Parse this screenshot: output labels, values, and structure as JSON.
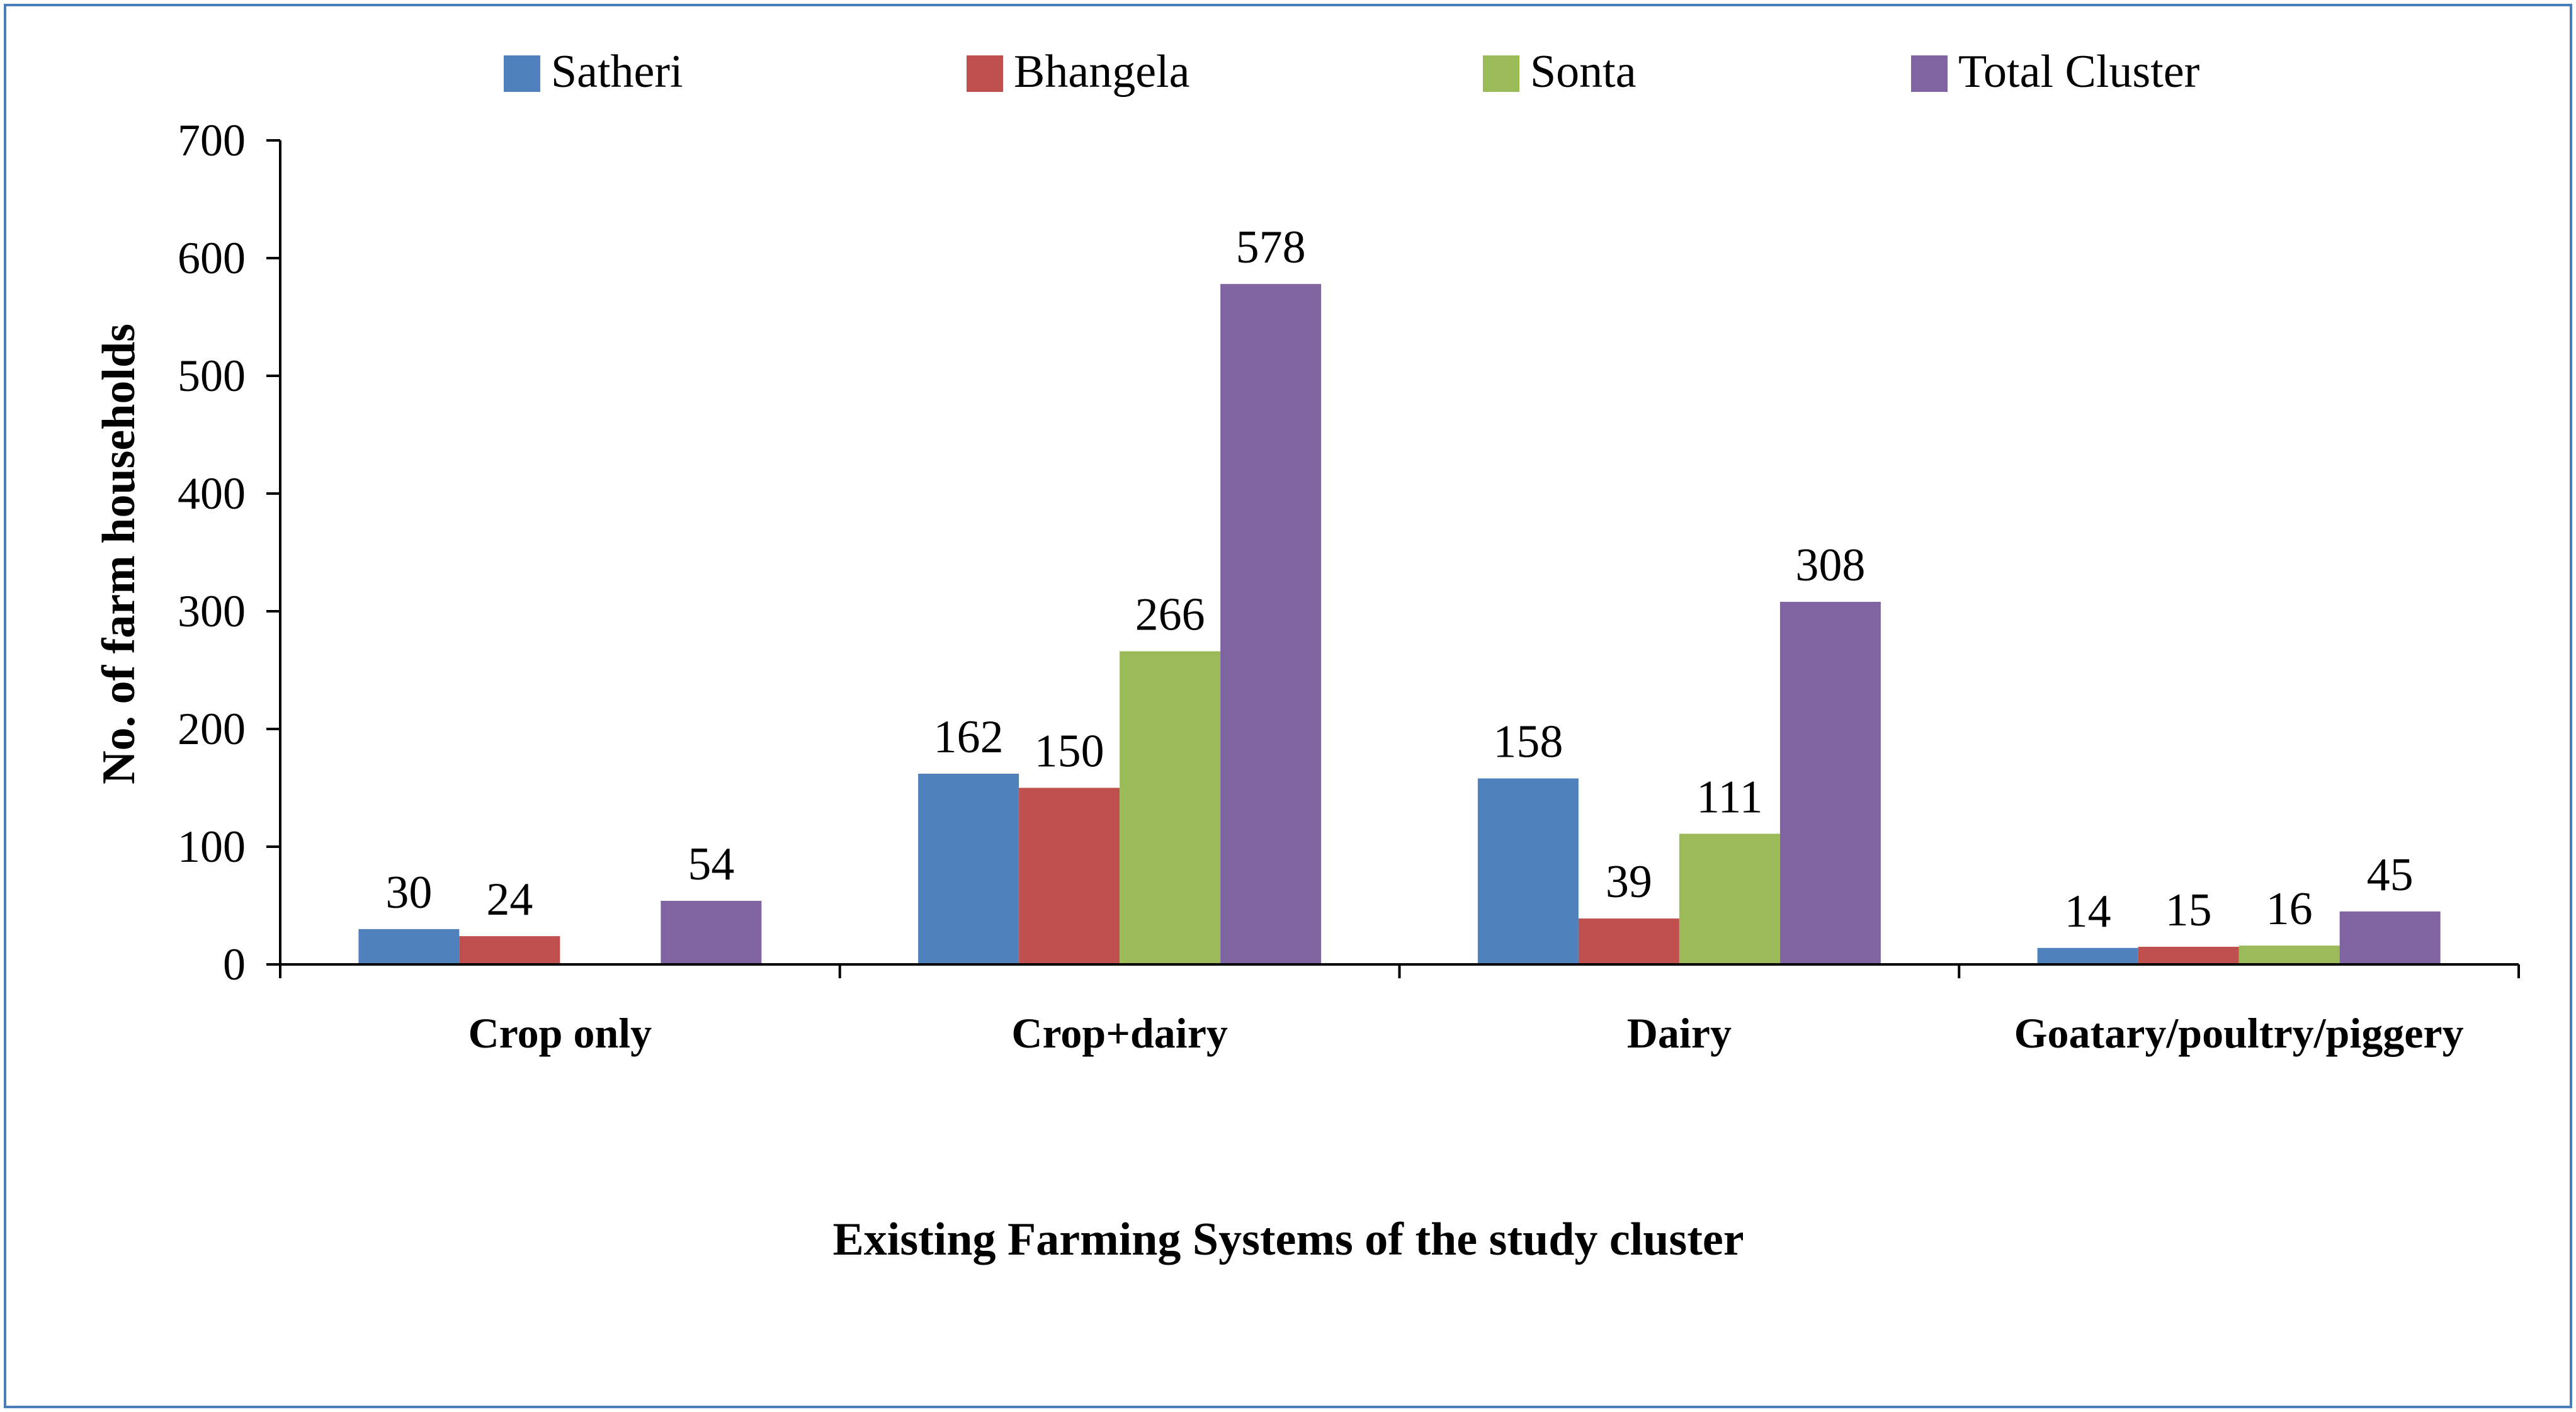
{
  "chart_data": {
    "type": "bar",
    "title": "",
    "xlabel": "Existing Farming Systems of the study cluster",
    "ylabel": "No. of farm households",
    "ylim": [
      0,
      700
    ],
    "yticks": [
      0,
      100,
      200,
      300,
      400,
      500,
      600,
      700
    ],
    "grid": false,
    "legend_position": "top",
    "categories": [
      "Crop only",
      "Crop+dairy",
      "Dairy",
      "Goatary/poultry/piggery"
    ],
    "series": [
      {
        "name": "Satheri",
        "color": "#4f81bd",
        "values": [
          30,
          162,
          158,
          14
        ]
      },
      {
        "name": "Bhangela",
        "color": "#c0504d",
        "values": [
          24,
          150,
          39,
          15
        ]
      },
      {
        "name": "Sonta",
        "color": "#9bbb59",
        "values": [
          null,
          266,
          111,
          16
        ]
      },
      {
        "name": "Total Cluster",
        "color": "#8064a2",
        "values": [
          54,
          578,
          308,
          45
        ]
      }
    ]
  }
}
